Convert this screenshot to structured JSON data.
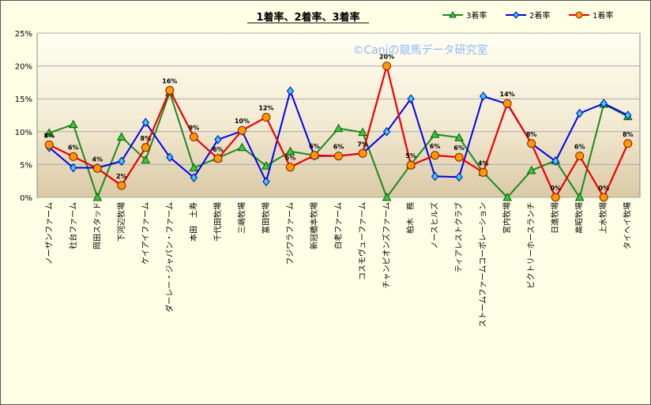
{
  "chart_data": {
    "type": "line",
    "title": "1着率、2着率、3着率",
    "watermark": "©Caniの競馬データ研究室",
    "y_ticks": [
      "0%",
      "5%",
      "10%",
      "15%",
      "20%",
      "25%"
    ],
    "ylim": [
      0,
      25
    ],
    "grid": true,
    "legend_position": "top-right",
    "categories": [
      "ノーザンファーム",
      "社台ファーム",
      "岡田スタッド",
      "下河辺牧場",
      "ケイアイファーム",
      "ダーレー・ジャパン・ファーム",
      "本田　土寿",
      "千代田牧場",
      "三嶋牧場",
      "富田牧場",
      "フジワラファーム",
      "新冠橋本牧場",
      "白老ファーム",
      "コスモヴューファーム",
      "チャンピオンズファーム",
      "柏木　務",
      "ノースヒルズ",
      "ティアレストクラブ",
      "ストームファームコーポレーション",
      "宮内牧場",
      "ビクトリーホースランチ",
      "日進牧場",
      "高昭牧場",
      "上水牧場",
      "タイヘイ牧場"
    ],
    "series": [
      {
        "name": "3着率",
        "color": "#1a8a1a",
        "marker": "triangle",
        "marker_color": "#33cc33",
        "values": [
          9.8,
          11.1,
          0,
          9.2,
          5.7,
          16.0,
          4.5,
          6.0,
          7.6,
          4.8,
          7.0,
          6.4,
          10.5,
          9.9,
          0,
          5.0,
          9.6,
          9.1,
          3.8,
          0,
          4.1,
          5.6,
          0,
          14.2,
          12.3
        ]
      },
      {
        "name": "2着率",
        "color": "#0000ee",
        "marker": "diamond",
        "marker_color": "#33ccff",
        "values": [
          7.6,
          4.5,
          4.5,
          5.5,
          11.4,
          6.1,
          3.0,
          8.8,
          10.1,
          2.4,
          16.2,
          6.3,
          6.3,
          6.7,
          10.0,
          15.0,
          3.2,
          3.1,
          15.4,
          14.2,
          8.2,
          5.5,
          12.8,
          14.3,
          12.5
        ]
      },
      {
        "name": "1着率",
        "color": "#ee0000",
        "marker": "circle",
        "marker_color": "#ff9900",
        "values": [
          8.0,
          6.2,
          4.4,
          1.8,
          7.6,
          16.3,
          9.2,
          5.9,
          10.2,
          12.2,
          4.6,
          6.4,
          6.3,
          6.7,
          20.0,
          4.9,
          6.4,
          6.1,
          3.8,
          14.3,
          8.2,
          0,
          6.3,
          0,
          8.2
        ]
      }
    ],
    "data_labels": [
      "8%",
      "6%",
      "4%",
      "2%",
      "8%",
      "16%",
      "9%",
      "6%",
      "10%",
      "12%",
      "5%",
      "6%",
      "6%",
      "7%",
      "20%",
      "5%",
      "6%",
      "6%",
      "4%",
      "14%",
      "8%",
      "0%",
      "6%",
      "0%",
      "8%"
    ]
  }
}
